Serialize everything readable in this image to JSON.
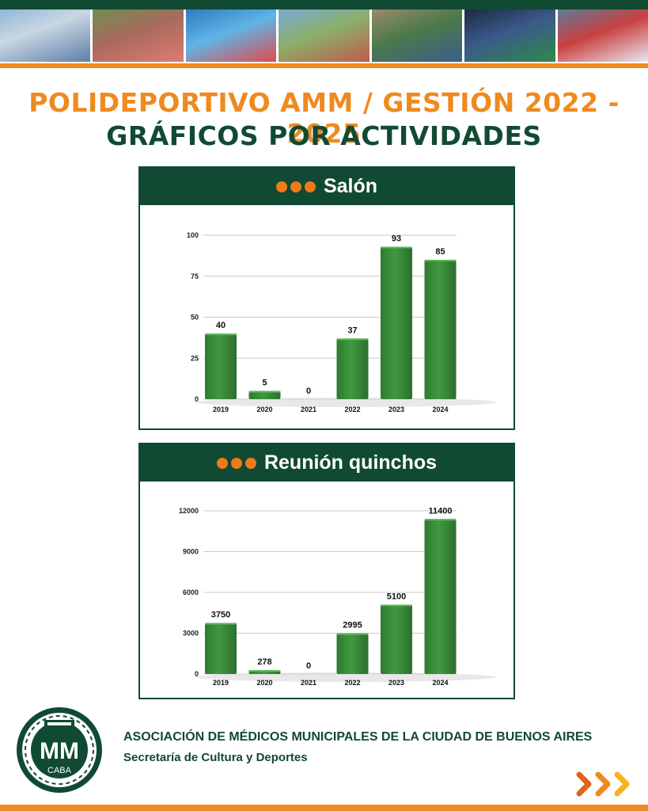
{
  "header": {
    "title": "POLIDEPORTIVO AMM / GESTIÓN 2022 - 2025",
    "subtitle": "GRÁFICOS POR ACTIVIDADES"
  },
  "colors": {
    "dark_green": "#114a33",
    "orange": "#ef8a1f",
    "bar_green": "#3f9a3f"
  },
  "charts": [
    {
      "panel_title": "Salón"
    },
    {
      "panel_title": "Reunión quinchos"
    }
  ],
  "chart_data": [
    {
      "type": "bar",
      "title": "Salón",
      "categories": [
        "2019",
        "2020",
        "2021",
        "2022",
        "2023",
        "2024"
      ],
      "values": [
        40,
        5,
        0,
        37,
        93,
        85
      ],
      "ylim": [
        0,
        100
      ],
      "yticks": [
        0,
        25,
        50,
        75,
        100
      ],
      "grid": true
    },
    {
      "type": "bar",
      "title": "Reunión quinchos",
      "categories": [
        "2019",
        "2020",
        "2021",
        "2022",
        "2023",
        "2024"
      ],
      "values": [
        3750,
        278,
        0,
        2995,
        5100,
        11400
      ],
      "ylim": [
        0,
        12000
      ],
      "yticks": [
        0,
        3000,
        6000,
        9000,
        12000
      ],
      "grid": true
    }
  ],
  "footer": {
    "org_name": "ASOCIACIÓN DE MÉDICOS MUNICIPALES DE LA CIUDAD DE BUENOS AIRES",
    "department": "Secretaría de Cultura y Deportes",
    "logo_text": "MM",
    "logo_subtext": "CABA"
  },
  "icons": {
    "header_bullets": "three-orange-dots-icon",
    "footer_arrows": "chevron-right-arrows-icon",
    "logo": "amm-logo"
  }
}
